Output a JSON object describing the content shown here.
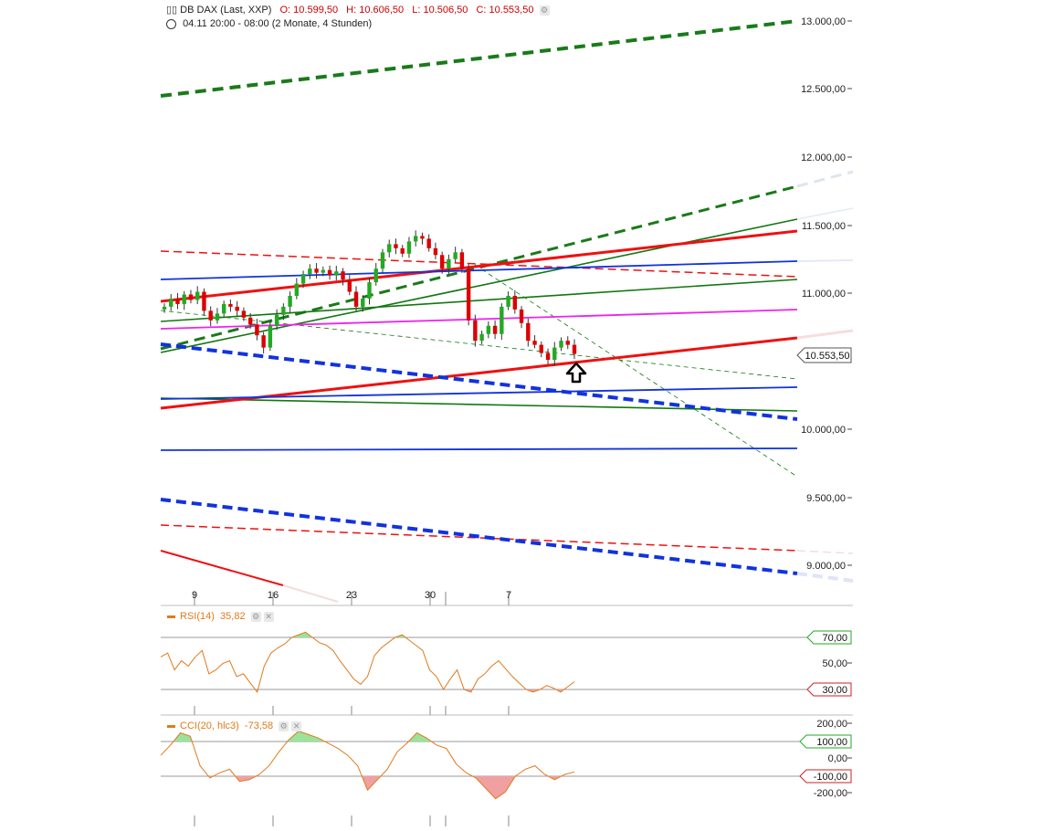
{
  "header": {
    "instrument": "DB DAX (Last, XXP)",
    "open": "O: 10.599,50",
    "high": "H: 10.606,50",
    "low": "L: 10.506,50",
    "close": "C: 10.553,50",
    "period": "04.11 20:00 - 08:00 (2 Monate, 4 Stunden)"
  },
  "icons": {
    "instrument": "candlestick-icon",
    "period": "clock-icon",
    "settings": "gear-icon",
    "close": "close-icon",
    "signal": "up-arrow-icon"
  },
  "colors": {
    "up": "#22aa22",
    "down": "#dd0000",
    "indicator": "#e07a1c",
    "trend_red": "#ee1111",
    "trend_green": "#117711",
    "trend_blue": "#1133dd",
    "trend_magenta": "#ee22ee"
  },
  "price_label": "10.553,50",
  "x_labels": [
    "9",
    "16",
    "23",
    "30",
    "7"
  ],
  "y_labels": [
    "13.000,00",
    "12.500,00",
    "12.000,00",
    "11.500,00",
    "11.000,00",
    "10.000,00",
    "9.500,00",
    "9.000,00"
  ],
  "rsi": {
    "label": "RSI(14)",
    "value": "35,82",
    "levels": [
      "70,00",
      "50,00",
      "30,00"
    ]
  },
  "cci": {
    "label": "CCI(20, hlc3)",
    "value": "-73,58",
    "levels": [
      "200,00",
      "100,00",
      "0,00",
      "-100,00",
      "-200,00"
    ]
  },
  "chart_data": {
    "type": "candlestick",
    "title": "DB DAX (Last, XXP)",
    "interval": "4 Stunden",
    "range": "2 Monate",
    "ylim": [
      8800,
      13150
    ],
    "x_ticks": [
      "9",
      "16",
      "23",
      "30",
      "7"
    ],
    "closes": [
      10900,
      10960,
      10920,
      10990,
      10950,
      11010,
      10870,
      10800,
      10850,
      10920,
      10900,
      10870,
      10820,
      10770,
      10690,
      10600,
      10760,
      10840,
      10900,
      10980,
      11070,
      11140,
      11180,
      11150,
      11170,
      11130,
      11160,
      11100,
      11010,
      10900,
      10960,
      11080,
      11180,
      11300,
      11360,
      11330,
      11290,
      11380,
      11420,
      11400,
      11330,
      11280,
      11180,
      11250,
      11300,
      11180,
      10800,
      10650,
      10700,
      10760,
      10700,
      10900,
      10980,
      10880,
      10780,
      10650,
      10620,
      10560,
      10510,
      10600,
      10650,
      10620,
      10553
    ],
    "last": 10553.5,
    "rsi": {
      "period": 14,
      "last": 35.82,
      "levels": [
        70,
        50,
        30
      ],
      "values": [
        55,
        58,
        45,
        52,
        48,
        55,
        60,
        42,
        45,
        50,
        52,
        40,
        42,
        35,
        28,
        48,
        58,
        62,
        65,
        70,
        72,
        74,
        70,
        66,
        64,
        60,
        52,
        45,
        38,
        34,
        40,
        56,
        62,
        66,
        70,
        72,
        68,
        64,
        60,
        45,
        40,
        30,
        38,
        45,
        30,
        28,
        38,
        42,
        48,
        52,
        46,
        40,
        35,
        30,
        28,
        30,
        33,
        31,
        28,
        32,
        36
      ]
    },
    "cci": {
      "period": 20,
      "source": "hlc3",
      "last": -73.58,
      "levels": [
        200,
        100,
        0,
        -100,
        -200
      ],
      "values": [
        20,
        80,
        150,
        130,
        -40,
        -110,
        -80,
        -60,
        -130,
        -120,
        -90,
        -40,
        40,
        110,
        160,
        140,
        120,
        90,
        60,
        20,
        -40,
        -180,
        -120,
        -60,
        40,
        90,
        150,
        120,
        80,
        60,
        -30,
        -80,
        -110,
        -170,
        -230,
        -190,
        -100,
        -60,
        -40,
        -90,
        -120,
        -90,
        -75
      ]
    }
  }
}
